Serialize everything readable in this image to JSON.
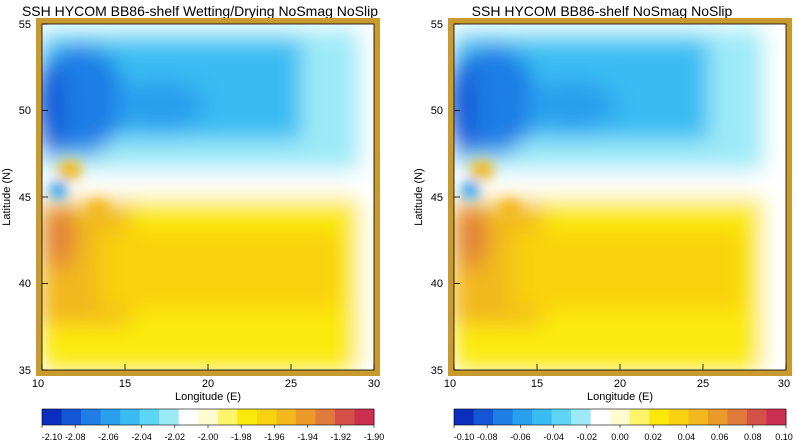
{
  "chart_data": [
    {
      "type": "heatmap",
      "title": "SSH HYCOM BB86-shelf Wetting/Drying NoSmag NoSlip",
      "xlabel": "Longitude (E)",
      "ylabel": "Latitude (N)",
      "xlim": [
        10,
        30
      ],
      "ylim": [
        35,
        55
      ],
      "x_ticks": [
        "10",
        "15",
        "20",
        "25",
        "30"
      ],
      "y_ticks": [
        "35",
        "40",
        "45",
        "50",
        "55"
      ],
      "colorbar": {
        "min": -2.1,
        "max": -1.9,
        "tick_labels": [
          "-2.10",
          "-2.08",
          "-2.06",
          "-2.04",
          "-2.02",
          "-2.00",
          "-1.98",
          "-1.96",
          "-1.94",
          "-1.92",
          "-1.90"
        ]
      },
      "field_summary": {
        "north_low_min": -2.09,
        "south_high_max": -1.91,
        "land_border": true
      }
    },
    {
      "type": "heatmap",
      "title": "SSH HYCOM BB86-shelf  NoSmag NoSlip",
      "xlabel": "Longitude (E)",
      "ylabel": "Latitude (N)",
      "xlim": [
        10,
        30
      ],
      "ylim": [
        35,
        55
      ],
      "x_ticks": [
        "10",
        "15",
        "20",
        "25",
        "30"
      ],
      "y_ticks": [
        "35",
        "40",
        "45",
        "50",
        "55"
      ],
      "colorbar": {
        "min": -0.1,
        "max": 0.1,
        "tick_labels": [
          "-0.10",
          "-0.08",
          "-0.06",
          "-0.04",
          "-0.02",
          "0.00",
          "0.02",
          "0.04",
          "0.06",
          "0.08",
          "0.10"
        ]
      },
      "field_summary": {
        "north_low_min": -0.09,
        "south_high_max": 0.09,
        "land_border": true
      }
    }
  ],
  "palette": [
    "#0a2fbe",
    "#1356d6",
    "#1d7ee6",
    "#2a9fee",
    "#38bcf2",
    "#5cd6f4",
    "#9deaf7",
    "#ffffff",
    "#fffbd0",
    "#fff46a",
    "#fbe90b",
    "#f8d20f",
    "#f2b81c",
    "#eb9a2a",
    "#e07a3a",
    "#d55048",
    "#cc3050"
  ],
  "border_color": "#c99a2e"
}
